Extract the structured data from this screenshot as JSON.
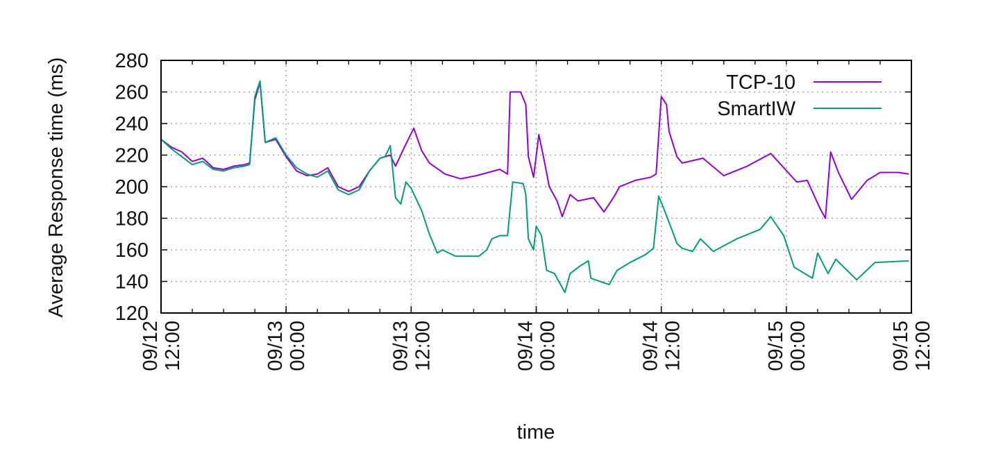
{
  "chart_data": {
    "type": "line",
    "title": "",
    "xlabel": "time",
    "ylabel": "Average Response time (ms)",
    "ylim": [
      120,
      280
    ],
    "yticks": [
      120,
      140,
      160,
      180,
      200,
      220,
      240,
      260,
      280
    ],
    "xlim": [
      "09/12 12:00",
      "09/15 12:00"
    ],
    "xticks": [
      {
        "date": "09/12",
        "time": "12:00"
      },
      {
        "date": "09/13",
        "time": "00:00"
      },
      {
        "date": "09/13",
        "time": "12:00"
      },
      {
        "date": "09/14",
        "time": "00:00"
      },
      {
        "date": "09/14",
        "time": "12:00"
      },
      {
        "date": "09/15",
        "time": "00:00"
      },
      {
        "date": "09/15",
        "time": "12:00"
      }
    ],
    "grid": true,
    "legend_position": "top-right",
    "series": [
      {
        "name": "TCP-10",
        "color": "#9400D3",
        "points": [
          [
            "09/12 12:00",
            230
          ],
          [
            "09/12 13:00",
            225
          ],
          [
            "09/12 14:00",
            222
          ],
          [
            "09/12 15:00",
            216
          ],
          [
            "09/12 16:00",
            218
          ],
          [
            "09/12 17:00",
            212
          ],
          [
            "09/12 18:00",
            211
          ],
          [
            "09/12 19:00",
            213
          ],
          [
            "09/12 20:00",
            214
          ],
          [
            "09/12 20:30",
            215
          ],
          [
            "09/12 21:00",
            255
          ],
          [
            "09/12 21:30",
            266
          ],
          [
            "09/12 22:00",
            228
          ],
          [
            "09/12 23:00",
            230
          ],
          [
            "09/13 00:00",
            219
          ],
          [
            "09/13 01:00",
            210
          ],
          [
            "09/13 02:00",
            207
          ],
          [
            "09/13 03:00",
            208
          ],
          [
            "09/13 04:00",
            212
          ],
          [
            "09/13 05:00",
            200
          ],
          [
            "09/13 06:00",
            197
          ],
          [
            "09/13 07:00",
            200
          ],
          [
            "09/13 08:00",
            210
          ],
          [
            "09/13 09:00",
            218
          ],
          [
            "09/13 10:00",
            220
          ],
          [
            "09/13 10:30",
            213
          ],
          [
            "09/13 11:30",
            227
          ],
          [
            "09/13 12:15",
            237
          ],
          [
            "09/13 13:00",
            223
          ],
          [
            "09/13 13:45",
            215
          ],
          [
            "09/13 15:15",
            208
          ],
          [
            "09/13 16:45",
            205
          ],
          [
            "09/13 18:15",
            207
          ],
          [
            "09/13 20:30",
            211
          ],
          [
            "09/13 21:15",
            208
          ],
          [
            "09/13 21:30",
            260
          ],
          [
            "09/13 22:30",
            260
          ],
          [
            "09/13 23:00",
            252
          ],
          [
            "09/13 23:15",
            219
          ],
          [
            "09/13 23:45",
            206
          ],
          [
            "09/14 00:15",
            233
          ],
          [
            "09/14 00:45",
            217
          ],
          [
            "09/14 01:15",
            200
          ],
          [
            "09/14 02:00",
            191
          ],
          [
            "09/14 02:30",
            181
          ],
          [
            "09/14 03:15",
            195
          ],
          [
            "09/14 04:00",
            191
          ],
          [
            "09/14 05:30",
            193
          ],
          [
            "09/14 06:30",
            184
          ],
          [
            "09/14 07:30",
            194
          ],
          [
            "09/14 08:00",
            200
          ],
          [
            "09/14 09:30",
            204
          ],
          [
            "09/14 11:00",
            206
          ],
          [
            "09/14 11:30",
            208
          ],
          [
            "09/14 12:00",
            257
          ],
          [
            "09/14 12:30",
            252
          ],
          [
            "09/14 12:45",
            235
          ],
          [
            "09/14 13:30",
            219
          ],
          [
            "09/14 14:00",
            215
          ],
          [
            "09/14 16:00",
            218
          ],
          [
            "09/14 18:00",
            207
          ],
          [
            "09/14 20:15",
            213
          ],
          [
            "09/14 22:30",
            221
          ],
          [
            "09/14 23:45",
            212
          ],
          [
            "09/15 01:00",
            203
          ],
          [
            "09/15 02:00",
            204
          ],
          [
            "09/15 03:15",
            186
          ],
          [
            "09/15 03:45",
            180
          ],
          [
            "09/15 04:15",
            222
          ],
          [
            "09/15 05:00",
            209
          ],
          [
            "09/15 06:15",
            192
          ],
          [
            "09/15 07:45",
            204
          ],
          [
            "09/15 09:00",
            209
          ],
          [
            "09/15 10:45",
            209
          ],
          [
            "09/15 11:45",
            208
          ]
        ]
      },
      {
        "name": "SmartIW",
        "color": "#009E73",
        "points": [
          [
            "09/12 12:00",
            230
          ],
          [
            "09/12 13:00",
            224
          ],
          [
            "09/12 14:00",
            219
          ],
          [
            "09/12 15:00",
            214
          ],
          [
            "09/12 16:00",
            216
          ],
          [
            "09/12 17:00",
            211
          ],
          [
            "09/12 18:00",
            210
          ],
          [
            "09/12 19:00",
            212
          ],
          [
            "09/12 20:00",
            213
          ],
          [
            "09/12 20:30",
            214
          ],
          [
            "09/12 21:00",
            257
          ],
          [
            "09/12 21:30",
            267
          ],
          [
            "09/12 22:00",
            228
          ],
          [
            "09/12 23:00",
            231
          ],
          [
            "09/13 00:00",
            220
          ],
          [
            "09/13 01:00",
            212
          ],
          [
            "09/13 02:00",
            208
          ],
          [
            "09/13 03:00",
            206
          ],
          [
            "09/13 04:00",
            210
          ],
          [
            "09/13 05:00",
            198
          ],
          [
            "09/13 06:00",
            195
          ],
          [
            "09/13 07:00",
            198
          ],
          [
            "09/13 08:00",
            210
          ],
          [
            "09/13 09:00",
            218
          ],
          [
            "09/13 09:30",
            219
          ],
          [
            "09/13 10:00",
            226
          ],
          [
            "09/13 10:30",
            193
          ],
          [
            "09/13 11:00",
            189
          ],
          [
            "09/13 11:30",
            203
          ],
          [
            "09/13 12:00",
            199
          ],
          [
            "09/13 13:00",
            185
          ],
          [
            "09/13 13:45",
            170
          ],
          [
            "09/13 14:30",
            158
          ],
          [
            "09/13 15:00",
            160
          ],
          [
            "09/13 16:15",
            156
          ],
          [
            "09/13 18:30",
            156
          ],
          [
            "09/13 19:15",
            160
          ],
          [
            "09/13 19:45",
            167
          ],
          [
            "09/13 20:30",
            169
          ],
          [
            "09/13 21:15",
            169
          ],
          [
            "09/13 21:45",
            203
          ],
          [
            "09/13 22:45",
            202
          ],
          [
            "09/13 23:00",
            195
          ],
          [
            "09/13 23:15",
            167
          ],
          [
            "09/13 23:45",
            160
          ],
          [
            "09/14 00:00",
            175
          ],
          [
            "09/14 00:30",
            169
          ],
          [
            "09/14 01:00",
            147
          ],
          [
            "09/14 01:45",
            145
          ],
          [
            "09/14 02:45",
            133
          ],
          [
            "09/14 03:15",
            145
          ],
          [
            "09/14 04:15",
            150
          ],
          [
            "09/14 05:00",
            153
          ],
          [
            "09/14 05:15",
            142
          ],
          [
            "09/14 07:00",
            138
          ],
          [
            "09/14 07:45",
            147
          ],
          [
            "09/14 09:00",
            152
          ],
          [
            "09/14 10:30",
            157
          ],
          [
            "09/14 11:15",
            161
          ],
          [
            "09/14 11:45",
            194
          ],
          [
            "09/14 12:15",
            186
          ],
          [
            "09/14 13:00",
            173
          ],
          [
            "09/14 13:30",
            164
          ],
          [
            "09/14 14:00",
            161
          ],
          [
            "09/14 15:00",
            159
          ],
          [
            "09/14 15:45",
            167
          ],
          [
            "09/14 17:00",
            159
          ],
          [
            "09/14 19:15",
            167
          ],
          [
            "09/14 21:30",
            173
          ],
          [
            "09/14 22:30",
            181
          ],
          [
            "09/14 23:45",
            169
          ],
          [
            "09/15 00:45",
            149
          ],
          [
            "09/15 02:30",
            142
          ],
          [
            "09/15 03:00",
            158
          ],
          [
            "09/15 04:00",
            145
          ],
          [
            "09/15 04:45",
            154
          ],
          [
            "09/15 06:45",
            141
          ],
          [
            "09/15 08:30",
            152
          ],
          [
            "09/15 11:45",
            153
          ]
        ]
      }
    ]
  }
}
